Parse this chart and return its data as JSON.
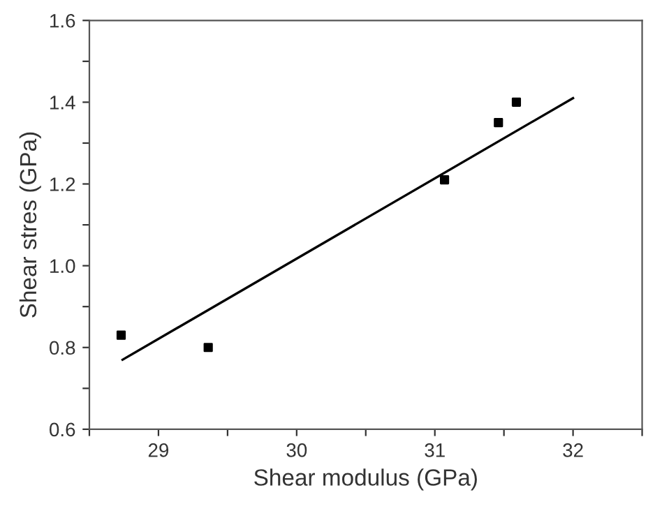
{
  "chart_data": {
    "type": "scatter",
    "xlabel": "Shear modulus (GPa)",
    "ylabel": "Shear stres (GPa)",
    "xlim": [
      28.5,
      32.5
    ],
    "ylim": [
      0.6,
      1.6
    ],
    "xticks": [
      {
        "value": 28.5,
        "label": null
      },
      29,
      {
        "value": 29.5,
        "label": null
      },
      30,
      {
        "value": 30.5,
        "label": null
      },
      31,
      {
        "value": 31.5,
        "label": null
      },
      32,
      {
        "value": 32.5,
        "label": null
      }
    ],
    "yticks": [
      0.6,
      {
        "value": 0.7,
        "label": null
      },
      0.8,
      {
        "value": 0.9,
        "label": null
      },
      {
        "value": 1.0,
        "label": "1.0"
      },
      {
        "value": 1.1,
        "label": null
      },
      1.2,
      {
        "value": 1.3,
        "label": null
      },
      1.4,
      {
        "value": 1.5,
        "label": null
      },
      1.6
    ],
    "grid": false,
    "series": [
      {
        "marker": "square",
        "color": "#000000",
        "x": [
          28.73,
          29.36,
          31.07,
          31.46,
          31.59
        ],
        "values": [
          0.83,
          0.8,
          1.21,
          1.35,
          1.4
        ]
      },
      {
        "type": "line",
        "color": "#000000",
        "x": [
          28.74,
          32.0
        ],
        "values": [
          0.77,
          1.41
        ],
        "line_style": "solid",
        "marker": "none"
      }
    ]
  }
}
